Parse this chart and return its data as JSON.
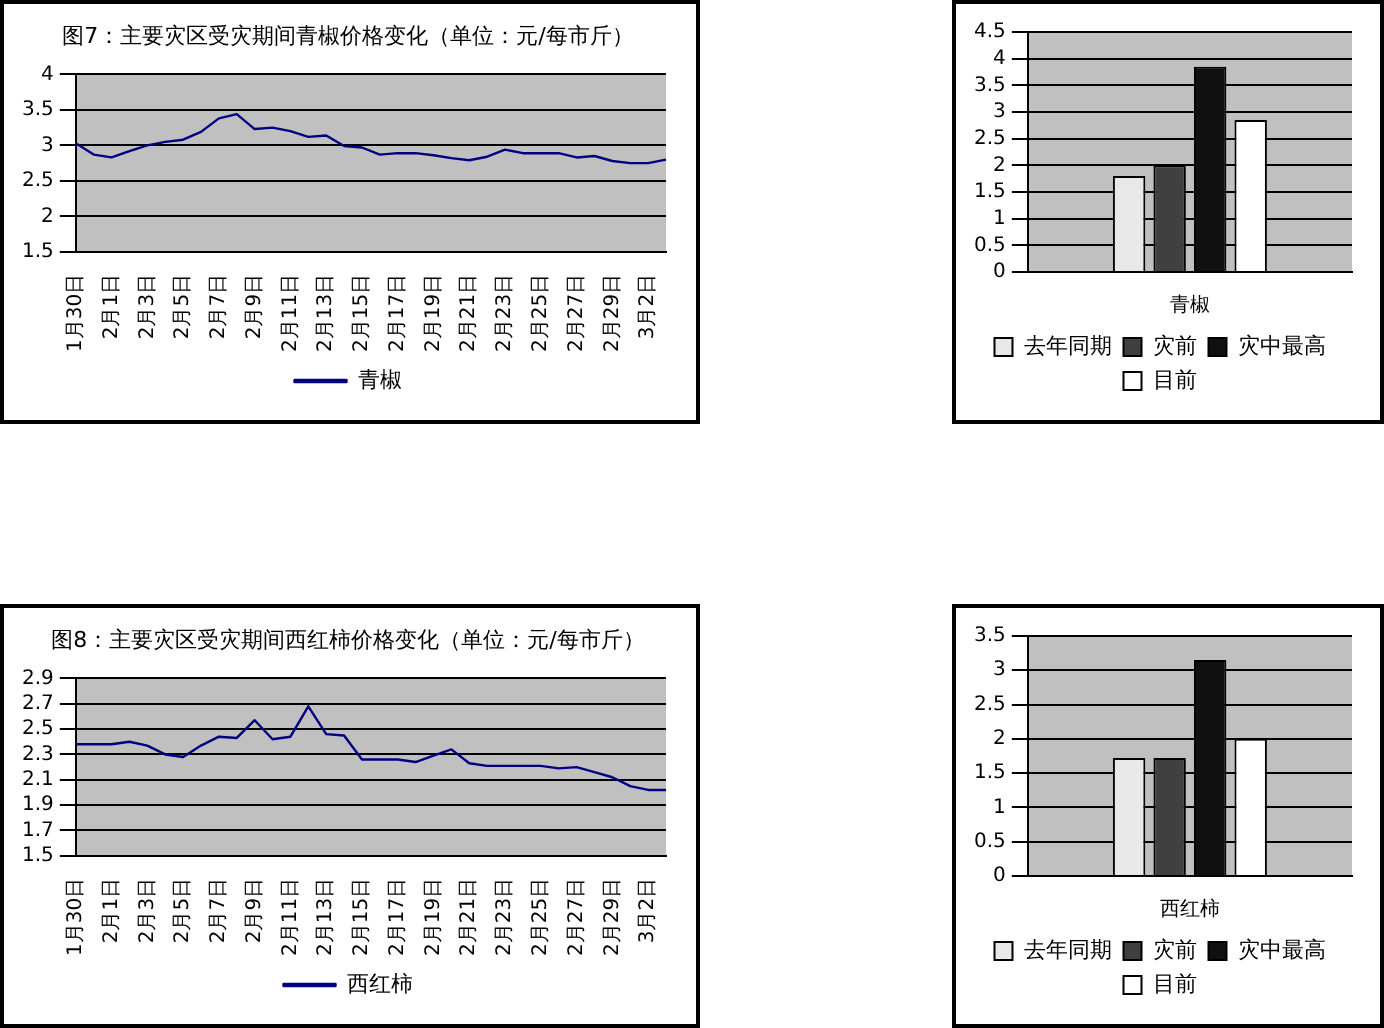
{
  "chart_data": [
    {
      "type": "line",
      "title": "图7：主要灾区受灾期间青椒价格变化（单位：元/每市斤）",
      "categories": [
        "1月30日",
        null,
        "2月1日",
        null,
        "2月3日",
        null,
        "2月5日",
        null,
        "2月7日",
        null,
        "2月9日",
        null,
        "2月11日",
        null,
        "2月13日",
        null,
        "2月15日",
        null,
        "2月17日",
        null,
        "2月19日",
        null,
        "2月21日",
        null,
        "2月23日",
        null,
        "2月25日",
        null,
        "2月27日",
        null,
        "2月29日",
        null,
        "3月2日",
        null
      ],
      "series": [
        {
          "name": "青椒",
          "color": "#000080",
          "values": [
            3.03,
            2.87,
            2.83,
            2.92,
            3.0,
            3.05,
            3.08,
            3.19,
            3.38,
            3.44,
            3.23,
            3.25,
            3.2,
            3.12,
            3.14,
            2.99,
            2.97,
            2.87,
            2.89,
            2.89,
            2.86,
            2.82,
            2.79,
            2.84,
            2.94,
            2.89,
            2.89,
            2.89,
            2.83,
            2.85,
            2.78,
            2.75,
            2.75,
            2.8
          ]
        }
      ],
      "ylim": [
        1.5,
        4
      ],
      "yticks": [
        1.5,
        2,
        2.5,
        3,
        3.5,
        4
      ],
      "grid": "y",
      "legend": "bottom"
    },
    {
      "type": "bar",
      "categories": [
        "青椒"
      ],
      "series": [
        {
          "name": "去年同期",
          "color": "#e8e8e8",
          "values": [
            1.8
          ]
        },
        {
          "name": "灾前",
          "color": "#404040",
          "values": [
            2.0
          ]
        },
        {
          "name": "灾中最高",
          "color": "#101010",
          "values": [
            3.85
          ]
        },
        {
          "name": "目前",
          "color": "#ffffff",
          "values": [
            2.85
          ]
        }
      ],
      "ylim": [
        0,
        4.5
      ],
      "yticks": [
        0,
        0.5,
        1,
        1.5,
        2,
        2.5,
        3,
        3.5,
        4,
        4.5
      ],
      "grid": "y",
      "legend": "bottom"
    },
    {
      "type": "line",
      "title": "图8：主要灾区受灾期间西红柿价格变化（单位：元/每市斤）",
      "categories": [
        "1月30日",
        null,
        "2月1日",
        null,
        "2月3日",
        null,
        "2月5日",
        null,
        "2月7日",
        null,
        "2月9日",
        null,
        "2月11日",
        null,
        "2月13日",
        null,
        "2月15日",
        null,
        "2月17日",
        null,
        "2月19日",
        null,
        "2月21日",
        null,
        "2月23日",
        null,
        "2月25日",
        null,
        "2月27日",
        null,
        "2月29日",
        null,
        "3月2日",
        null
      ],
      "series": [
        {
          "name": "西红柿",
          "color": "#000080",
          "values": [
            2.38,
            2.38,
            2.38,
            2.4,
            2.37,
            2.3,
            2.28,
            2.37,
            2.44,
            2.43,
            2.57,
            2.42,
            2.44,
            2.68,
            2.46,
            2.45,
            2.26,
            2.26,
            2.26,
            2.24,
            2.29,
            2.34,
            2.23,
            2.21,
            2.21,
            2.21,
            2.21,
            2.19,
            2.2,
            2.16,
            2.12,
            2.05,
            2.02,
            2.02
          ]
        }
      ],
      "ylim": [
        1.5,
        2.9
      ],
      "yticks": [
        1.5,
        1.7,
        1.9,
        2.1,
        2.3,
        2.5,
        2.7,
        2.9
      ],
      "grid": "y",
      "legend": "bottom"
    },
    {
      "type": "bar",
      "categories": [
        "西红柿"
      ],
      "series": [
        {
          "name": "去年同期",
          "color": "#e8e8e8",
          "values": [
            1.72
          ]
        },
        {
          "name": "灾前",
          "color": "#404040",
          "values": [
            1.72
          ]
        },
        {
          "name": "灾中最高",
          "color": "#101010",
          "values": [
            3.15
          ]
        },
        {
          "name": "目前",
          "color": "#ffffff",
          "values": [
            2.0
          ]
        }
      ],
      "ylim": [
        0,
        3.5
      ],
      "yticks": [
        0,
        0.5,
        1,
        1.5,
        2,
        2.5,
        3,
        3.5
      ],
      "grid": "y",
      "legend": "bottom"
    }
  ]
}
